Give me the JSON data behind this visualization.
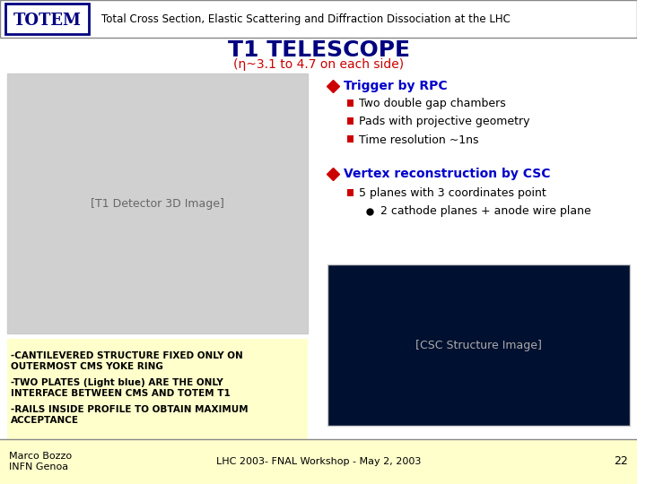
{
  "title_totem": "TOTEM",
  "title_desc": "Total Cross Section, Elastic Scattering and Diffraction Dissociation at the LHC",
  "slide_title": "T1 TELESCOPE",
  "slide_subtitle": "(η~3.1 to 4.7 on each side)",
  "bullet1_color": "#cc0000",
  "bullet1_label_color": "#0000cc",
  "bullet1_label": "Trigger by RPC",
  "sub_bullet_color": "#cc0000",
  "sub1": "Two double gap chambers",
  "sub2": "Pads with projective geometry",
  "sub3": "Time resolution ~1ns",
  "bullet2_label": "Vertex reconstruction by CSC",
  "sub4": "5 planes with 3 coordinates point",
  "sub5": "2 cathode planes + anode wire plane",
  "cantilevered": "-CANTILEVERED STRUCTURE FIXED ONLY ON\nOUTERMOST CMS YOKE RING",
  "two_plates": "-TWO PLATES (Light blue) ARE THE ONLY\nINTERFACE BETWEEN CMS AND TOTEM T1",
  "rails": "-RAILS INSIDE PROFILE TO OBTAIN MAXIMUM\nACCEPTANCE",
  "author": "Marco Bozzo\nINFN Genoa",
  "conference": "LHC 2003- FNAL Workshop - May 2, 2003",
  "page_num": "22",
  "bg_color": "#ffffff",
  "header_bg": "#ffffff",
  "footer_bg": "#ffffcc",
  "left_text_bg": "#ffffcc",
  "totem_box_color": "#000080",
  "slide_title_color": "#000080",
  "subtitle_color": "#cc0000"
}
